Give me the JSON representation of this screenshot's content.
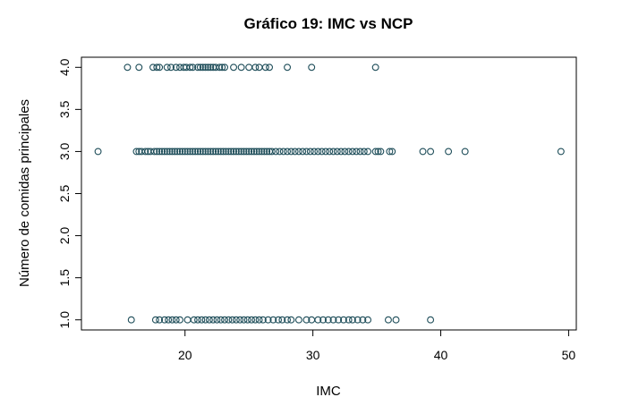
{
  "chart_data": {
    "type": "scatter",
    "title": "Gráfico 19: IMC vs NCP",
    "xlabel": "IMC",
    "ylabel": "Número de comidas principales",
    "xlim": [
      11.9,
      50.6
    ],
    "ylim": [
      0.88,
      4.12
    ],
    "xticks": [
      {
        "value": 20,
        "label": "20"
      },
      {
        "value": 30,
        "label": "30"
      },
      {
        "value": 40,
        "label": "40"
      },
      {
        "value": 50,
        "label": "50"
      }
    ],
    "yticks": [
      {
        "value": 1.0,
        "label": "1.0"
      },
      {
        "value": 1.5,
        "label": "1.5"
      },
      {
        "value": 2.0,
        "label": "2.0"
      },
      {
        "value": 2.5,
        "label": "2.5"
      },
      {
        "value": 3.0,
        "label": "3.0"
      },
      {
        "value": 3.5,
        "label": "3.5"
      },
      {
        "value": 4.0,
        "label": "4.0"
      }
    ],
    "grid": false,
    "point_color": "#1f4e5a",
    "series": [
      {
        "y": 4,
        "x": [
          15.5,
          16.4,
          17.5,
          17.8,
          18.0,
          18.6,
          18.9,
          19.3,
          19.6,
          19.9,
          20.1,
          20.4,
          20.6,
          21.0,
          21.2,
          21.4,
          21.6,
          21.8,
          22.0,
          22.2,
          22.4,
          22.7,
          22.9,
          23.1,
          23.8,
          24.4,
          25.0,
          25.5,
          25.8,
          26.3,
          26.6,
          28.0,
          29.9,
          34.9
        ]
      },
      {
        "y": 3,
        "x": [
          13.2,
          16.2,
          16.4,
          16.6,
          16.9,
          17.1,
          17.3,
          17.6,
          17.8,
          18.0,
          18.2,
          18.4,
          18.6,
          18.8,
          19.0,
          19.2,
          19.4,
          19.6,
          19.8,
          20.0,
          20.2,
          20.4,
          20.6,
          20.8,
          21.0,
          21.2,
          21.4,
          21.6,
          21.8,
          22.0,
          22.2,
          22.4,
          22.6,
          22.8,
          23.0,
          23.2,
          23.4,
          23.6,
          23.8,
          24.0,
          24.2,
          24.4,
          24.6,
          24.8,
          25.0,
          25.2,
          25.4,
          25.6,
          25.8,
          26.0,
          26.2,
          26.4,
          26.6,
          26.8,
          27.1,
          27.4,
          27.7,
          28.0,
          28.3,
          28.6,
          28.9,
          29.2,
          29.5,
          29.8,
          30.1,
          30.4,
          30.7,
          31.0,
          31.3,
          31.6,
          31.9,
          32.2,
          32.5,
          32.8,
          33.1,
          33.4,
          33.7,
          34.0,
          34.3,
          34.9,
          35.1,
          35.3,
          36.0,
          36.2,
          38.6,
          39.2,
          40.6,
          41.9,
          49.4
        ]
      },
      {
        "y": 1,
        "x": [
          15.8,
          17.7,
          18.0,
          18.4,
          18.7,
          19.0,
          19.3,
          19.6,
          20.2,
          20.7,
          21.0,
          21.3,
          21.6,
          21.9,
          22.2,
          22.5,
          22.8,
          23.1,
          23.4,
          23.7,
          24.0,
          24.3,
          24.6,
          24.9,
          25.2,
          25.5,
          25.8,
          26.1,
          26.5,
          26.9,
          27.3,
          27.6,
          28.0,
          28.3,
          28.9,
          29.5,
          29.9,
          30.4,
          30.8,
          31.2,
          31.6,
          32.0,
          32.4,
          32.8,
          33.1,
          33.5,
          33.9,
          34.3,
          35.9,
          36.5,
          39.2
        ]
      }
    ]
  }
}
